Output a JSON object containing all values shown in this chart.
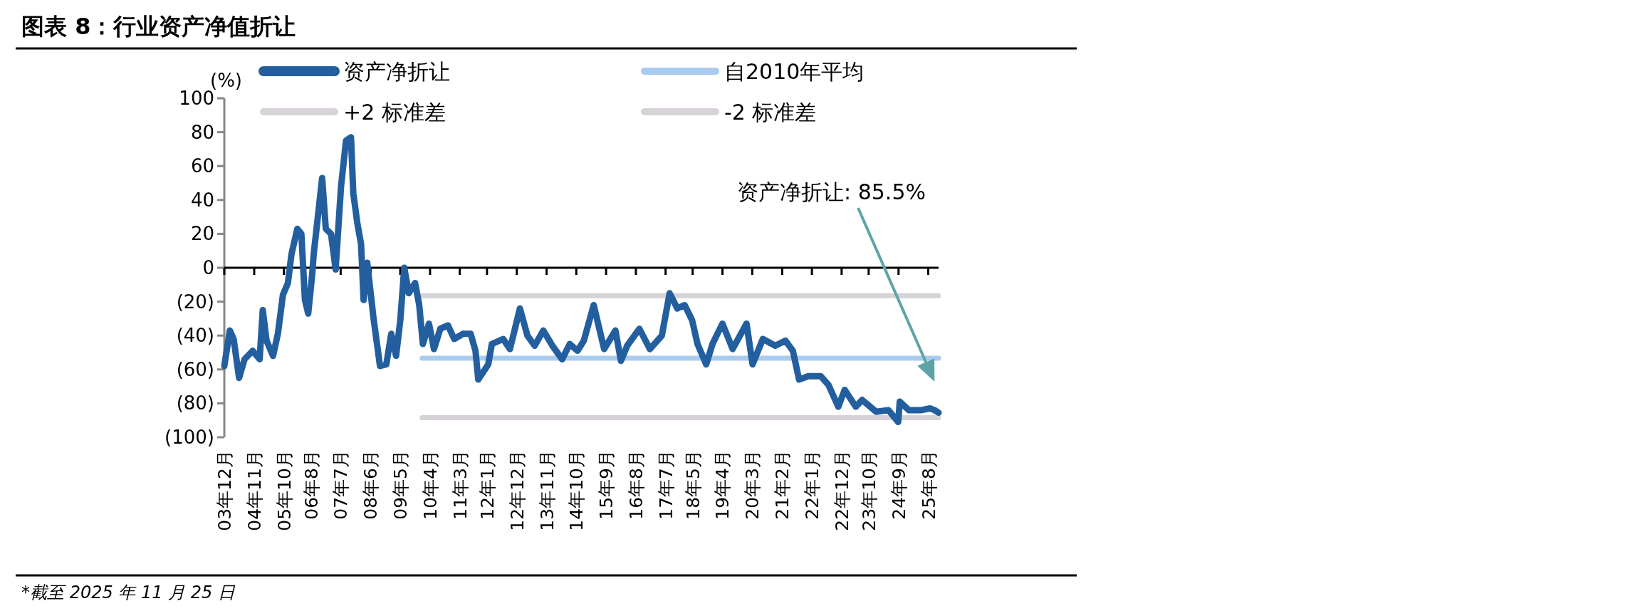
{
  "chart_data": {
    "type": "line",
    "title": "图表 8：行业资产净值折让",
    "ylabel": "(%)",
    "legend": "top",
    "annotations": [
      "资产净折让: 85.5%",
      "*截至 2025 年 11 月 25 日"
    ],
    "xlim": [
      "2003-12-01",
      "2025-11-25"
    ],
    "xticks": [
      {
        "value": "2003-12",
        "label": "03年12月"
      },
      {
        "value": "2004-11",
        "label": "04年11月"
      },
      {
        "value": "2005-10",
        "label": "05年10月"
      },
      {
        "value": "2006-08",
        "label": "06年8月"
      },
      {
        "value": "2007-07",
        "label": "07年7月"
      },
      {
        "value": "2008-06",
        "label": "08年6月"
      },
      {
        "value": "2009-05",
        "label": "09年5月"
      },
      {
        "value": "2010-04",
        "label": "10年4月"
      },
      {
        "value": "2011-03",
        "label": "11年3月"
      },
      {
        "value": "2012-01",
        "label": "12年1月"
      },
      {
        "value": "2012-12",
        "label": "12年12月"
      },
      {
        "value": "2013-11",
        "label": "13年11月"
      },
      {
        "value": "2014-10",
        "label": "14年10月"
      },
      {
        "value": "2015-09",
        "label": "15年9月"
      },
      {
        "value": "2016-08",
        "label": "16年8月"
      },
      {
        "value": "2017-07",
        "label": "17年7月"
      },
      {
        "value": "2018-05",
        "label": "18年5月"
      },
      {
        "value": "2019-04",
        "label": "19年4月"
      },
      {
        "value": "2020-03",
        "label": "20年3月"
      },
      {
        "value": "2021-02",
        "label": "21年2月"
      },
      {
        "value": "2022-01",
        "label": "22年1月"
      },
      {
        "value": "2022-12",
        "label": "22年12月"
      },
      {
        "value": "2023-10",
        "label": "23年10月"
      },
      {
        "value": "2024-09",
        "label": "24年9月"
      },
      {
        "value": "2025-08",
        "label": "25年8月"
      }
    ],
    "ylim": [
      -100,
      100
    ],
    "yticks": [
      {
        "value": -100,
        "label": "(100)"
      },
      {
        "value": -80,
        "label": "(80)"
      },
      {
        "value": -60,
        "label": "(60)"
      },
      {
        "value": -40,
        "label": "(40)"
      },
      {
        "value": -20,
        "label": "(20)"
      },
      0,
      20,
      40,
      60,
      80,
      100
    ],
    "series": [
      {
        "name": "资产净折让",
        "color": "#235f9f",
        "x": [
          "2003-12-01",
          "2004-02-01",
          "2004-03-15",
          "2004-05-15",
          "2004-07-15",
          "2004-10-15",
          "2005-01-01",
          "2005-02-05",
          "2005-03-20",
          "2005-06-01",
          "2005-07-25",
          "2005-09-20",
          "2005-11-15",
          "2005-12-25",
          "2006-03-01",
          "2006-04-15",
          "2006-05-25",
          "2006-07-01",
          "2006-08-15",
          "2006-09-01",
          "2006-12-05",
          "2007-01-15",
          "2007-03-15",
          "2007-05-05",
          "2007-07-05",
          "2007-08-30",
          "2007-10-25",
          "2007-11-20",
          "2008-01-05",
          "2008-02-15",
          "2008-03-15",
          "2008-04-25",
          "2008-07-05",
          "2008-09-15",
          "2008-11-25",
          "2009-01-20",
          "2009-03-15",
          "2009-05-01",
          "2009-06-15",
          "2009-08-05",
          "2009-10-15",
          "2009-11-30",
          "2010-01-10",
          "2010-03-20",
          "2010-05-15",
          "2010-07-25",
          "2010-10-20",
          "2010-12-28",
          "2011-04-05",
          "2011-07-01",
          "2011-08-25",
          "2011-09-25",
          "2012-01-15",
          "2012-02-25",
          "2012-07-01",
          "2012-09-15",
          "2013-01-05",
          "2013-03-30",
          "2013-06-20",
          "2013-09-25",
          "2014-01-05",
          "2014-04-25",
          "2014-07-20",
          "2014-10-15",
          "2014-12-25",
          "2015-04-15",
          "2015-08-10",
          "2015-12-15",
          "2016-02-15",
          "2016-04-25",
          "2016-09-10",
          "2017-01-05",
          "2017-05-20",
          "2017-08-15",
          "2017-11-10",
          "2018-02-01",
          "2018-04-25",
          "2018-06-25",
          "2018-10-01",
          "2018-12-10",
          "2019-04-01",
          "2019-07-25",
          "2019-12-28",
          "2020-03-05",
          "2020-06-28",
          "2020-11-15",
          "2021-03-10",
          "2021-06-01",
          "2021-08-10",
          "2021-11-20",
          "2022-04-10",
          "2022-07-05",
          "2022-10-25",
          "2023-01-05",
          "2023-05-10",
          "2023-07-20",
          "2023-12-25",
          "2024-05-10",
          "2024-08-28",
          "2024-09-15",
          "2024-12-25",
          "2025-05-15",
          "2025-08-20",
          "2025-10-10",
          "2025-11-25"
        ],
        "values": [
          -58,
          -37,
          -42,
          -65,
          -54,
          -49,
          -54,
          -25,
          -43,
          -52,
          -39,
          -16,
          -9,
          8,
          23,
          20,
          -19,
          -27,
          -4,
          8,
          53,
          23,
          20,
          -1,
          48,
          75,
          77,
          44,
          26,
          14,
          -19,
          3,
          -30,
          -58,
          -57,
          -39,
          -52,
          -31,
          0,
          -15,
          -9,
          -22,
          -45,
          -33,
          -48,
          -36,
          -34,
          -42,
          -39,
          -39,
          -49,
          -66,
          -57,
          -45,
          -42,
          -48,
          -24,
          -40,
          -46,
          -37,
          -46,
          -54,
          -45,
          -49,
          -43,
          -22,
          -48,
          -37,
          -55,
          -46,
          -36,
          -48,
          -40,
          -15,
          -24,
          -22,
          -31,
          -45,
          -57,
          -45,
          -33,
          -48,
          -33,
          -57,
          -42,
          -46,
          -43,
          -49,
          -66,
          -64,
          -64,
          -69,
          -82,
          -72,
          -82,
          -78,
          -85,
          -84,
          -91,
          -79,
          -84,
          -84,
          -83,
          -84,
          -85.5
        ]
      },
      {
        "name": "自2010年平均",
        "color": "#a9cbee",
        "x": [
          "2010-01-01",
          "2025-11-25"
        ],
        "values": [
          -53.3,
          -53.3
        ]
      },
      {
        "name": "+2 标准差",
        "color": "#d6d2d8",
        "x": [
          "2010-01-01",
          "2025-11-25"
        ],
        "values": [
          -16.5,
          -16.5
        ]
      },
      {
        "name": "-2 标准差",
        "color": "#d6d2d8",
        "x": [
          "2010-01-01",
          "2025-11-25"
        ],
        "values": [
          -88.5,
          -88.5
        ]
      }
    ]
  }
}
